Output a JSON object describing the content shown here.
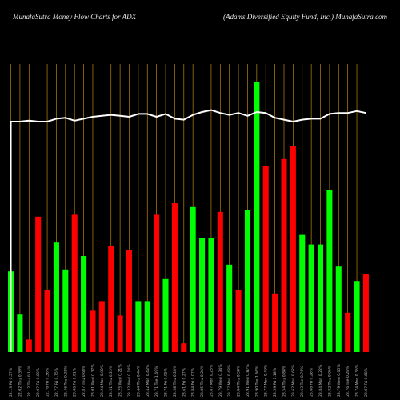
{
  "chart_data": {
    "type": "bar",
    "title": "MunafaSutra  Money Flow  Charts for ADX",
    "subtitle": "(Adams Diversified Equity Fund,  Inc.) MunafaSutra.com",
    "colors": {
      "up": "#00ff00",
      "down": "#ff0000",
      "line": "#ffffff",
      "grid": "#b8860b",
      "background": "#000000"
    },
    "categories": [
      "22.13 Fri 0.57%",
      "22.02 Thu 0.39%",
      "22.12 Thu 0.14%",
      "22.07 Fri 0.09%",
      "22.76 Fri 0.36%",
      "22.77 Fri 0.75%",
      "22.46 Tue 0.25%",
      "23.06 Fri 0.01%",
      "22.87 Thu 0.68%",
      "23.01 Wed 0.37%",
      "23.24 Mon 0.02%",
      "23.31 Thu 0.23%",
      "23.25 Wed 0.21%",
      "23.32 Wed 0.14%",
      "23.44 Thu 0.44%",
      "23.42 Mon 0.48%",
      "23.71 Tue 1.69%",
      "23.71 Fri 0.05%",
      "23.58 Thu 0.28%",
      "23.61 Fri 0.27%",
      "23.84 Fri 0.07%",
      "23.85 Thu 0.26%",
      "23.87 Mon 0.26%",
      "23.79 Wed 0.34%",
      "23.77 Mon 0.48%",
      "23.84 Thu 0.58%",
      "23.91 Wed 0.87%",
      "23.90 Tue 1.66%",
      "23.77 Mon 0.49%",
      "23.59 Fri 1.18%",
      "23.54 Thu 0.88%",
      "23.62 Mon 0.62%",
      "23.63 Tue 0.76%",
      "23.66 Fri 0.28%",
      "23.84 Mon 0.22%",
      "23.82 Thu 0.06%",
      "23.79 Wed 0.05%",
      "23.76 Tue 0.28%",
      "23.74 Mon 0.35%",
      "23.87 Fri 0.68%"
    ],
    "directions": [
      "up",
      "up",
      "down",
      "down",
      "down",
      "up",
      "up",
      "down",
      "up",
      "down",
      "down",
      "down",
      "down",
      "down",
      "up",
      "up",
      "down",
      "up",
      "down",
      "down",
      "up",
      "up",
      "up",
      "down",
      "up",
      "down",
      "up",
      "up",
      "down",
      "down",
      "down",
      "down",
      "up",
      "up",
      "up",
      "up",
      "up",
      "down",
      "up",
      "down"
    ],
    "values": [
      84,
      39,
      13,
      141,
      65,
      114,
      86,
      143,
      100,
      43,
      53,
      110,
      38,
      106,
      53,
      53,
      143,
      76,
      155,
      9,
      151,
      119,
      119,
      146,
      91,
      65,
      148,
      281,
      194,
      61,
      201,
      215,
      122,
      112,
      112,
      169,
      89,
      41,
      74,
      81
    ],
    "line": [
      240,
      240,
      241,
      240,
      240,
      243,
      244,
      241,
      243,
      245,
      246,
      247,
      246,
      245,
      248,
      248,
      245,
      248,
      243,
      242,
      247,
      250,
      252,
      249,
      247,
      249,
      246,
      250,
      249,
      244,
      242,
      240,
      242,
      243,
      243,
      248,
      249,
      249,
      251,
      249
    ],
    "line_start": 0,
    "ylim": [
      0,
      300
    ]
  }
}
